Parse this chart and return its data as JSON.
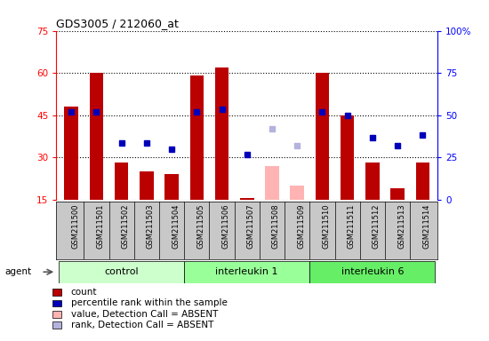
{
  "title": "GDS3005 / 212060_at",
  "samples": [
    "GSM211500",
    "GSM211501",
    "GSM211502",
    "GSM211503",
    "GSM211504",
    "GSM211505",
    "GSM211506",
    "GSM211507",
    "GSM211508",
    "GSM211509",
    "GSM211510",
    "GSM211511",
    "GSM211512",
    "GSM211513",
    "GSM211514"
  ],
  "bar_values": [
    48,
    60,
    28,
    25,
    24,
    59,
    62,
    15.5,
    null,
    null,
    60,
    45,
    28,
    19,
    28
  ],
  "bar_absent_values": [
    null,
    null,
    null,
    null,
    null,
    null,
    null,
    null,
    27,
    20,
    null,
    null,
    null,
    null,
    null
  ],
  "dot_values": [
    46,
    46,
    35,
    35,
    33,
    46,
    47,
    31,
    null,
    null,
    46,
    45,
    37,
    34,
    38
  ],
  "dot_absent_values": [
    null,
    null,
    null,
    null,
    null,
    null,
    null,
    null,
    40,
    34,
    null,
    null,
    null,
    null,
    null
  ],
  "bar_color": "#bb0000",
  "bar_absent_color": "#ffb3b3",
  "dot_color": "#0000bb",
  "dot_absent_color": "#b3b3dd",
  "ylim_left": [
    15,
    75
  ],
  "ylim_right": [
    0,
    100
  ],
  "yticks_left": [
    15,
    30,
    45,
    60,
    75
  ],
  "yticks_right": [
    0,
    25,
    50,
    75,
    100
  ],
  "ytick_labels_right": [
    "0",
    "25",
    "50",
    "75",
    "100%"
  ],
  "groups": [
    {
      "label": "control",
      "start": 0,
      "end": 4,
      "color": "#ccffcc"
    },
    {
      "label": "interleukin 1",
      "start": 5,
      "end": 9,
      "color": "#99ff99"
    },
    {
      "label": "interleukin 6",
      "start": 10,
      "end": 14,
      "color": "#66ee66"
    }
  ],
  "agent_label": "agent",
  "tick_bg_color": "#c8c8c8",
  "plot_bg_color": "#ffffff",
  "legend_items": [
    {
      "label": "count",
      "color": "#bb0000"
    },
    {
      "label": "percentile rank within the sample",
      "color": "#0000bb"
    },
    {
      "label": "value, Detection Call = ABSENT",
      "color": "#ffb3b3"
    },
    {
      "label": "rank, Detection Call = ABSENT",
      "color": "#b3b3dd"
    }
  ]
}
